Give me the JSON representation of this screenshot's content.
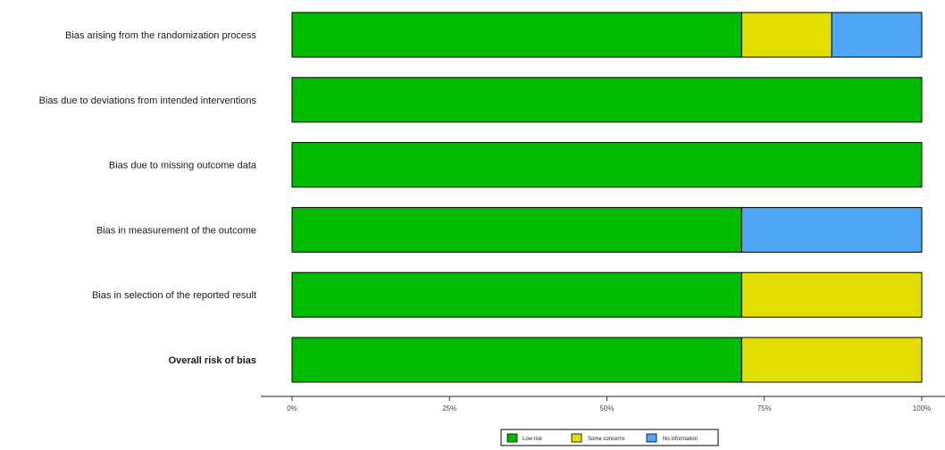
{
  "chart_data": {
    "type": "bar",
    "orientation": "horizontal",
    "stacked": true,
    "categories": [
      "Bias arising from the randomization process",
      "Bias due to deviations from intended interventions",
      "Bias due to missing outcome data",
      "Bias in measurement of the outcome",
      "Bias in selection of the reported result",
      "Overall risk of bias"
    ],
    "bold_categories": [
      "Overall risk of bias"
    ],
    "series": [
      {
        "name": "Low risk",
        "color": "#00bb00",
        "values": [
          71.4,
          100,
          100,
          71.4,
          71.4,
          71.4
        ]
      },
      {
        "name": "Some concerns",
        "color": "#e2df00",
        "values": [
          14.3,
          0,
          0,
          0,
          28.6,
          28.6
        ]
      },
      {
        "name": "No information",
        "color": "#4ea6f7",
        "values": [
          14.3,
          0,
          0,
          28.6,
          0,
          0
        ]
      }
    ],
    "xlim": [
      0,
      100
    ],
    "x_ticks": [
      0,
      25,
      50,
      75,
      100
    ],
    "x_tick_labels": [
      "0%",
      "25%",
      "50%",
      "75%",
      "100%"
    ],
    "legend_position": "bottom",
    "grid": false
  }
}
